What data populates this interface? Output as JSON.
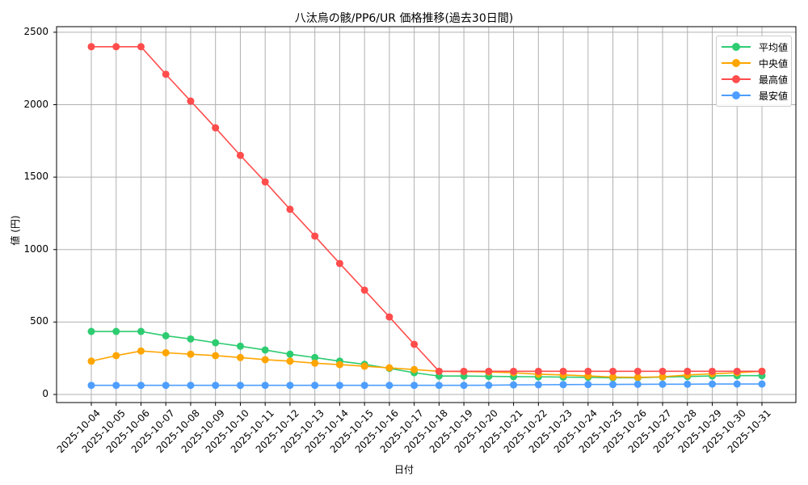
{
  "chart_data": {
    "type": "line",
    "title": "八汰烏の骸/PP6/UR 価格推移(過去30日間)",
    "xlabel": "日付",
    "ylabel": "値 (円)",
    "ylim": [
      -60,
      2520
    ],
    "yticks": [
      0,
      500,
      1000,
      1500,
      2000,
      2500
    ],
    "grid": true,
    "legend_position": "upper right",
    "categories": [
      "2025-10-04",
      "2025-10-05",
      "2025-10-06",
      "2025-10-07",
      "2025-10-08",
      "2025-10-09",
      "2025-10-10",
      "2025-10-11",
      "2025-10-12",
      "2025-10-13",
      "2025-10-14",
      "2025-10-15",
      "2025-10-16",
      "2025-10-17",
      "2025-10-18",
      "2025-10-19",
      "2025-10-20",
      "2025-10-21",
      "2025-10-22",
      "2025-10-23",
      "2025-10-24",
      "2025-10-25",
      "2025-10-26",
      "2025-10-27",
      "2025-10-28",
      "2025-10-29",
      "2025-10-30",
      "2025-10-31"
    ],
    "series": [
      {
        "name": "平均値",
        "color": "#2ecc71",
        "values": [
          435,
          435,
          435,
          405,
          383,
          357,
          333,
          307,
          278,
          255,
          230,
          208,
          180,
          150,
          127,
          127,
          125,
          123,
          122,
          120,
          118,
          115,
          115,
          120,
          124,
          128,
          130,
          130
        ]
      },
      {
        "name": "中央値",
        "color": "#ffa500",
        "values": [
          230,
          268,
          300,
          288,
          278,
          268,
          255,
          240,
          230,
          216,
          206,
          195,
          184,
          172,
          160,
          158,
          155,
          150,
          140,
          135,
          128,
          120,
          118,
          122,
          134,
          143,
          150,
          160
        ]
      },
      {
        "name": "最高値",
        "color": "#ff4c4c",
        "values": [
          2400,
          2400,
          2400,
          2210,
          2025,
          1840,
          1650,
          1467,
          1278,
          1093,
          904,
          720,
          535,
          346,
          160,
          160,
          160,
          160,
          160,
          160,
          160,
          160,
          160,
          160,
          160,
          160,
          160,
          160
        ]
      },
      {
        "name": "最安値",
        "color": "#4d9eff",
        "values": [
          63,
          63,
          63,
          63,
          63,
          63,
          63,
          63,
          63,
          63,
          63,
          63,
          63,
          63,
          63,
          63,
          64,
          66,
          67,
          68,
          69,
          69,
          70,
          71,
          71,
          72,
          72,
          72
        ]
      }
    ]
  }
}
